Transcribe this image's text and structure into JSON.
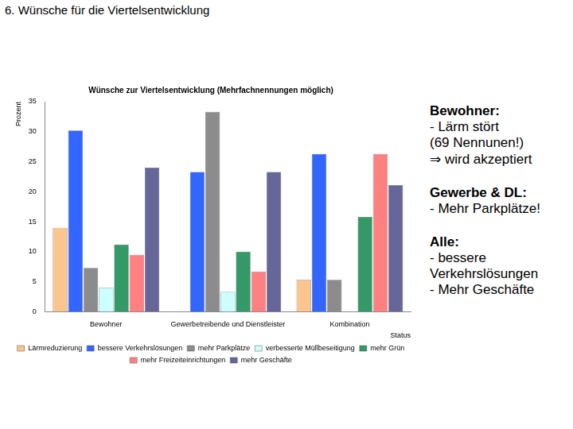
{
  "heading": "6. Wünsche für die Viertelsentwicklung",
  "chart_data": {
    "type": "bar",
    "title": "Wünsche zur Viertelsentwicklung (Mehrfachnennungen möglich)",
    "y_label": "Prozent",
    "x_label": "Status",
    "categories": [
      "Bewohner",
      "Gewerbetreibende und Dienstleister",
      "Kombination"
    ],
    "series": [
      {
        "name": "Lärmreduzierung",
        "color": "#fbc58f",
        "values": [
          14,
          0,
          5.3
        ]
      },
      {
        "name": "bessere Verkehrslösungen",
        "color": "#3366ff",
        "values": [
          30.2,
          23.3,
          26.3
        ]
      },
      {
        "name": "mehr Parkplätze",
        "color": "#8c8c8c",
        "values": [
          7.3,
          33.3,
          5.3
        ]
      },
      {
        "name": "verbesserte Müllbeseitigung",
        "color": "#ccffff",
        "values": [
          4,
          3.3,
          0
        ]
      },
      {
        "name": "mehr Grün",
        "color": "#339966",
        "values": [
          11.2,
          10,
          15.8
        ]
      },
      {
        "name": "mehr Freizeiteinrichtungen",
        "color": "#ff8080",
        "values": [
          9.5,
          6.7,
          26.3
        ]
      },
      {
        "name": "mehr Geschäfte",
        "color": "#666699",
        "values": [
          24,
          23.3,
          21.1
        ]
      }
    ],
    "ylim": [
      0,
      35
    ],
    "yticks": [
      0,
      5,
      10,
      15,
      20,
      25,
      30,
      35
    ],
    "grid": false,
    "legend": "bottom"
  },
  "notes": [
    {
      "title": "Bewohner:",
      "lines": [
        "- Lärm stört",
        "(69 Nennunen!)",
        "⇒ wird akzeptiert"
      ]
    },
    {
      "title": "Gewerbe & DL:",
      "lines": [
        "- Mehr Parkplätze!"
      ]
    },
    {
      "title": "Alle:",
      "lines": [
        "- bessere Verkehrslösungen",
        "- Mehr Geschäfte"
      ]
    }
  ]
}
